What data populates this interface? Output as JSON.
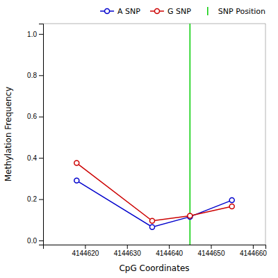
{
  "chart_data": {
    "type": "line",
    "xlabel": "CpG Coordinates",
    "ylabel": "Methylation Frequency",
    "x": [
      4144618,
      4144636,
      4144645,
      4144655
    ],
    "series": [
      {
        "name": "A SNP",
        "color": "#0000CC",
        "marker": "circle",
        "line_style": "solid",
        "values": [
          0.29,
          0.065,
          0.115,
          0.195
        ]
      },
      {
        "name": "G SNP",
        "color": "#CC0000",
        "marker": "circle",
        "line_style": "solid",
        "values": [
          0.375,
          0.095,
          0.12,
          0.165
        ]
      }
    ],
    "reference_lines": [
      {
        "name": "SNP Position",
        "x": 4144645,
        "color": "#00CC00"
      }
    ],
    "xlim": [
      4144610,
      4144663
    ],
    "ylim": [
      -0.02,
      1.05
    ],
    "xticks": [
      4144620,
      4144630,
      4144640,
      4144650,
      4144660
    ],
    "yticks": [
      {
        "value": 0,
        "label": "0.0"
      },
      0.2,
      0.4,
      0.6,
      0.8,
      {
        "value": 1,
        "label": "1.0"
      }
    ],
    "grid": false,
    "legend": "upper right"
  }
}
